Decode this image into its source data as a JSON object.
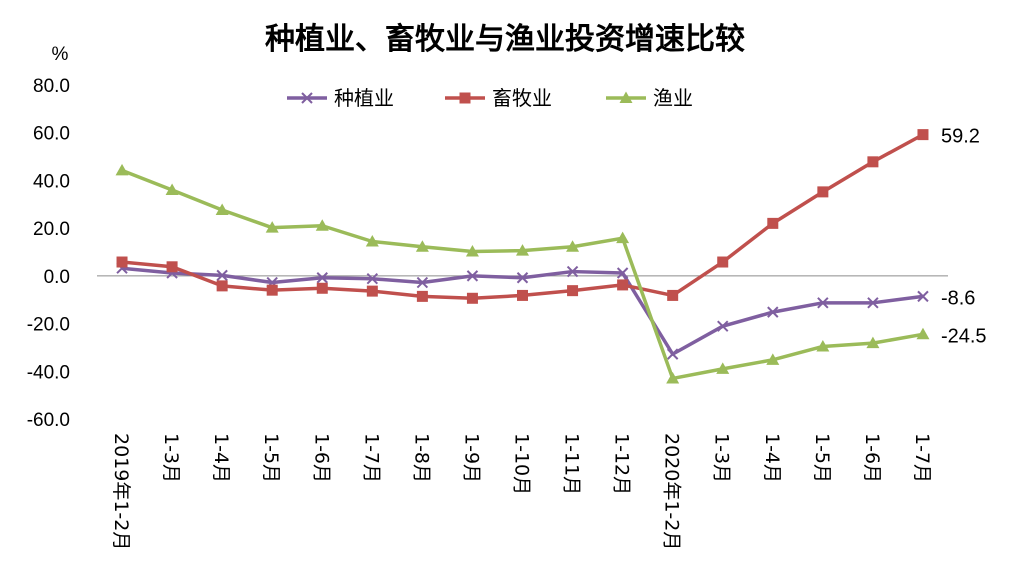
{
  "chart_data": {
    "type": "line",
    "title": "种植业、畜牧业与渔业投资增速比较",
    "ylabel": "%",
    "ylim": [
      -60,
      80
    ],
    "yticks": [
      "80.0",
      "60.0",
      "40.0",
      "20.0",
      "0.0",
      "-20.0",
      "-40.0",
      "-60.0"
    ],
    "categories": [
      "2019年1-2月",
      "1-3月",
      "1-4月",
      "1-5月",
      "1-6月",
      "1-7月",
      "1-8月",
      "1-9月",
      "1-10月",
      "1-11月",
      "1-12月",
      "2020年1-2月",
      "1-3月",
      "1-4月",
      "1-5月",
      "1-6月",
      "1-7月"
    ],
    "legend_position": "top",
    "grid": false,
    "series": [
      {
        "name": "种植业",
        "color": "#7F5FA0",
        "marker": "x",
        "values": [
          3.2,
          1.2,
          0.2,
          -2.8,
          -0.8,
          -1.2,
          -2.8,
          0.0,
          -0.8,
          1.8,
          1.2,
          -32.8,
          -21.1,
          -15.2,
          -11.3,
          -11.3,
          -8.6
        ],
        "end_label": "-8.6"
      },
      {
        "name": "畜牧业",
        "color": "#C0504D",
        "marker": "square",
        "values": [
          5.8,
          3.8,
          -4.2,
          -6.0,
          -5.2,
          -6.4,
          -8.6,
          -9.4,
          -8.2,
          -6.2,
          -3.8,
          -8.2,
          5.8,
          22.0,
          35.2,
          47.8,
          59.2
        ],
        "end_label": "59.2"
      },
      {
        "name": "渔业",
        "color": "#9BBB59",
        "marker": "triangle",
        "values": [
          44.2,
          36.0,
          27.6,
          20.2,
          21.0,
          14.4,
          12.2,
          10.2,
          10.6,
          12.2,
          15.8,
          -43.0,
          -39.0,
          -35.2,
          -29.6,
          -28.2,
          -24.5
        ],
        "end_label": "-24.5"
      }
    ]
  }
}
